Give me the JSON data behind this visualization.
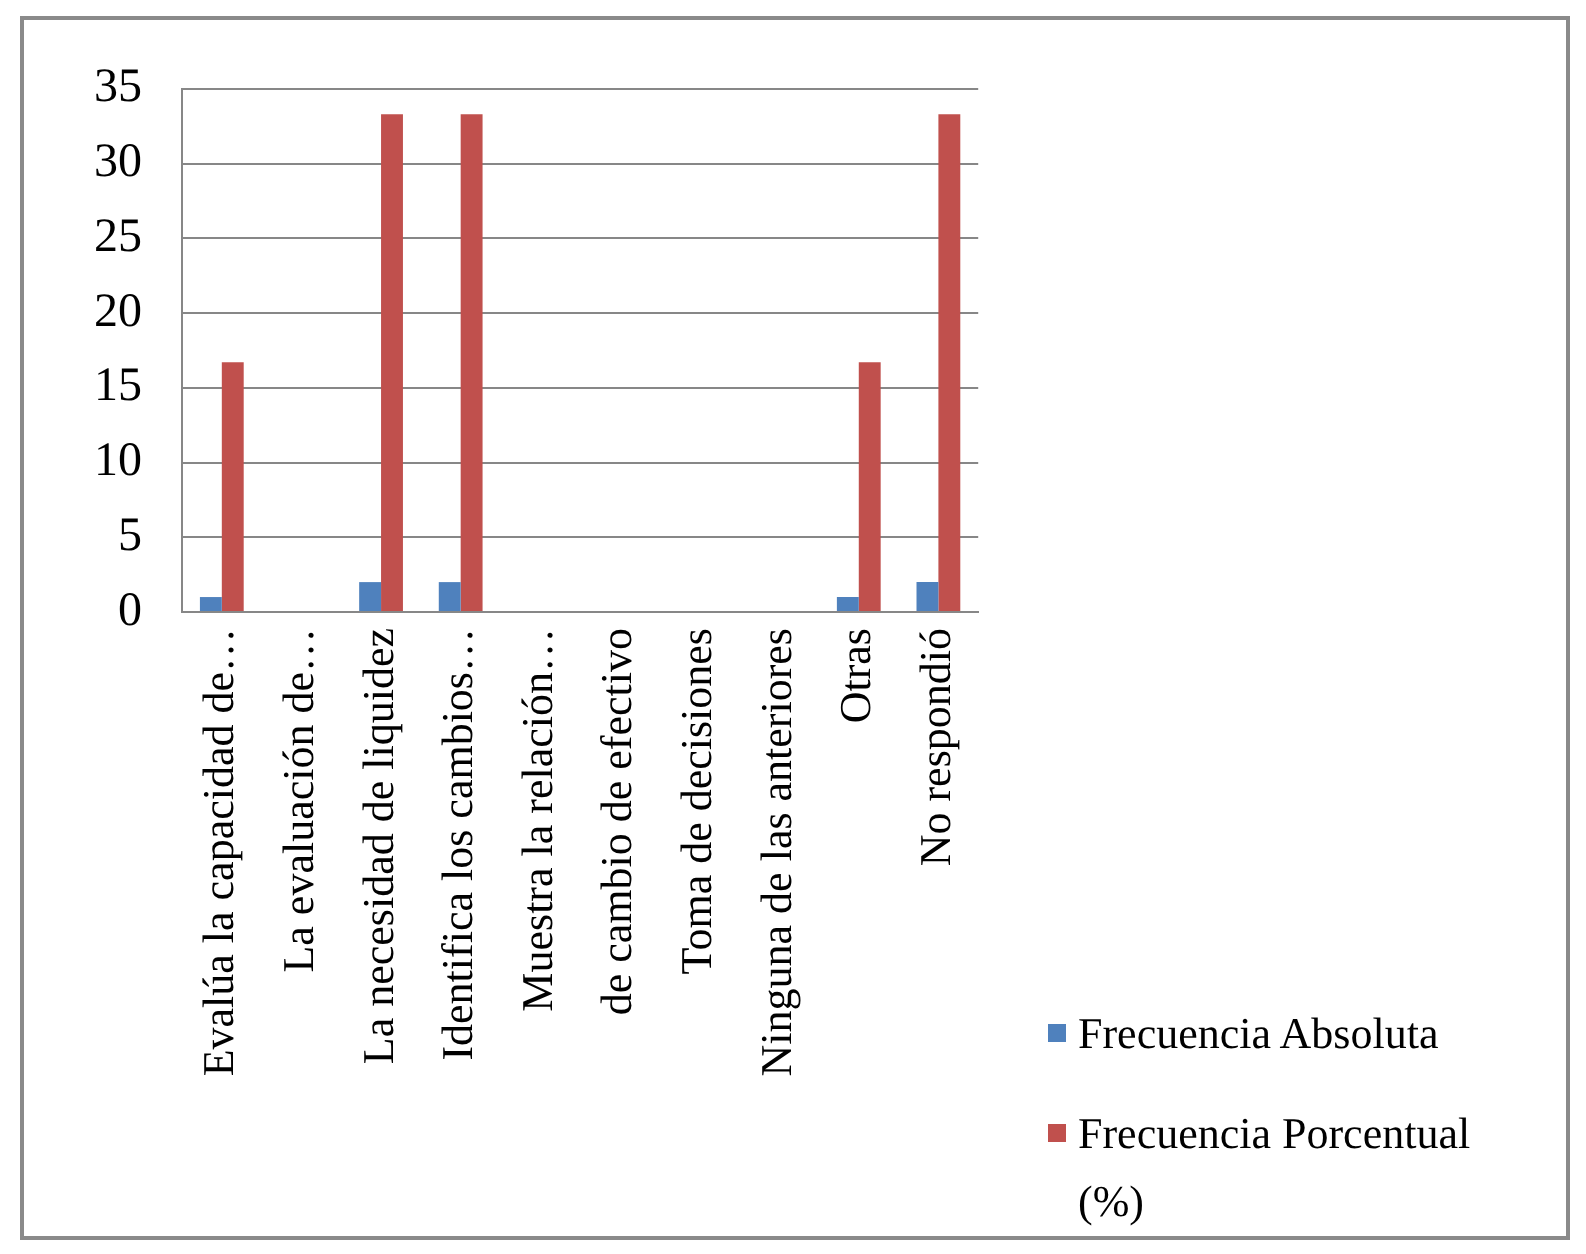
{
  "chart_data": {
    "type": "bar",
    "categories": [
      "Evalúa la capacidad de…",
      "La evaluación de…",
      "La necesidad de liquidez",
      "Identifica los cambios…",
      "Muestra la relación…",
      "de cambio de efectivo",
      "Toma de decisiones",
      "Ninguna de las anteriores",
      "Otras",
      "No respondió"
    ],
    "series": [
      {
        "name": "Frecuencia Absoluta",
        "color": "#4f81bd",
        "values": [
          1,
          0,
          2,
          2,
          0,
          0,
          0,
          0,
          1,
          2
        ]
      },
      {
        "name": "Frecuencia Porcentual (%)",
        "color": "#c0504d",
        "values": [
          16.7,
          0,
          33.3,
          33.3,
          0,
          0,
          0,
          0,
          16.7,
          33.3
        ]
      }
    ],
    "ylim": [
      0,
      35
    ],
    "yticks": [
      0,
      5,
      10,
      15,
      20,
      25,
      30,
      35
    ],
    "grid": "y",
    "legend": "bottom right"
  }
}
